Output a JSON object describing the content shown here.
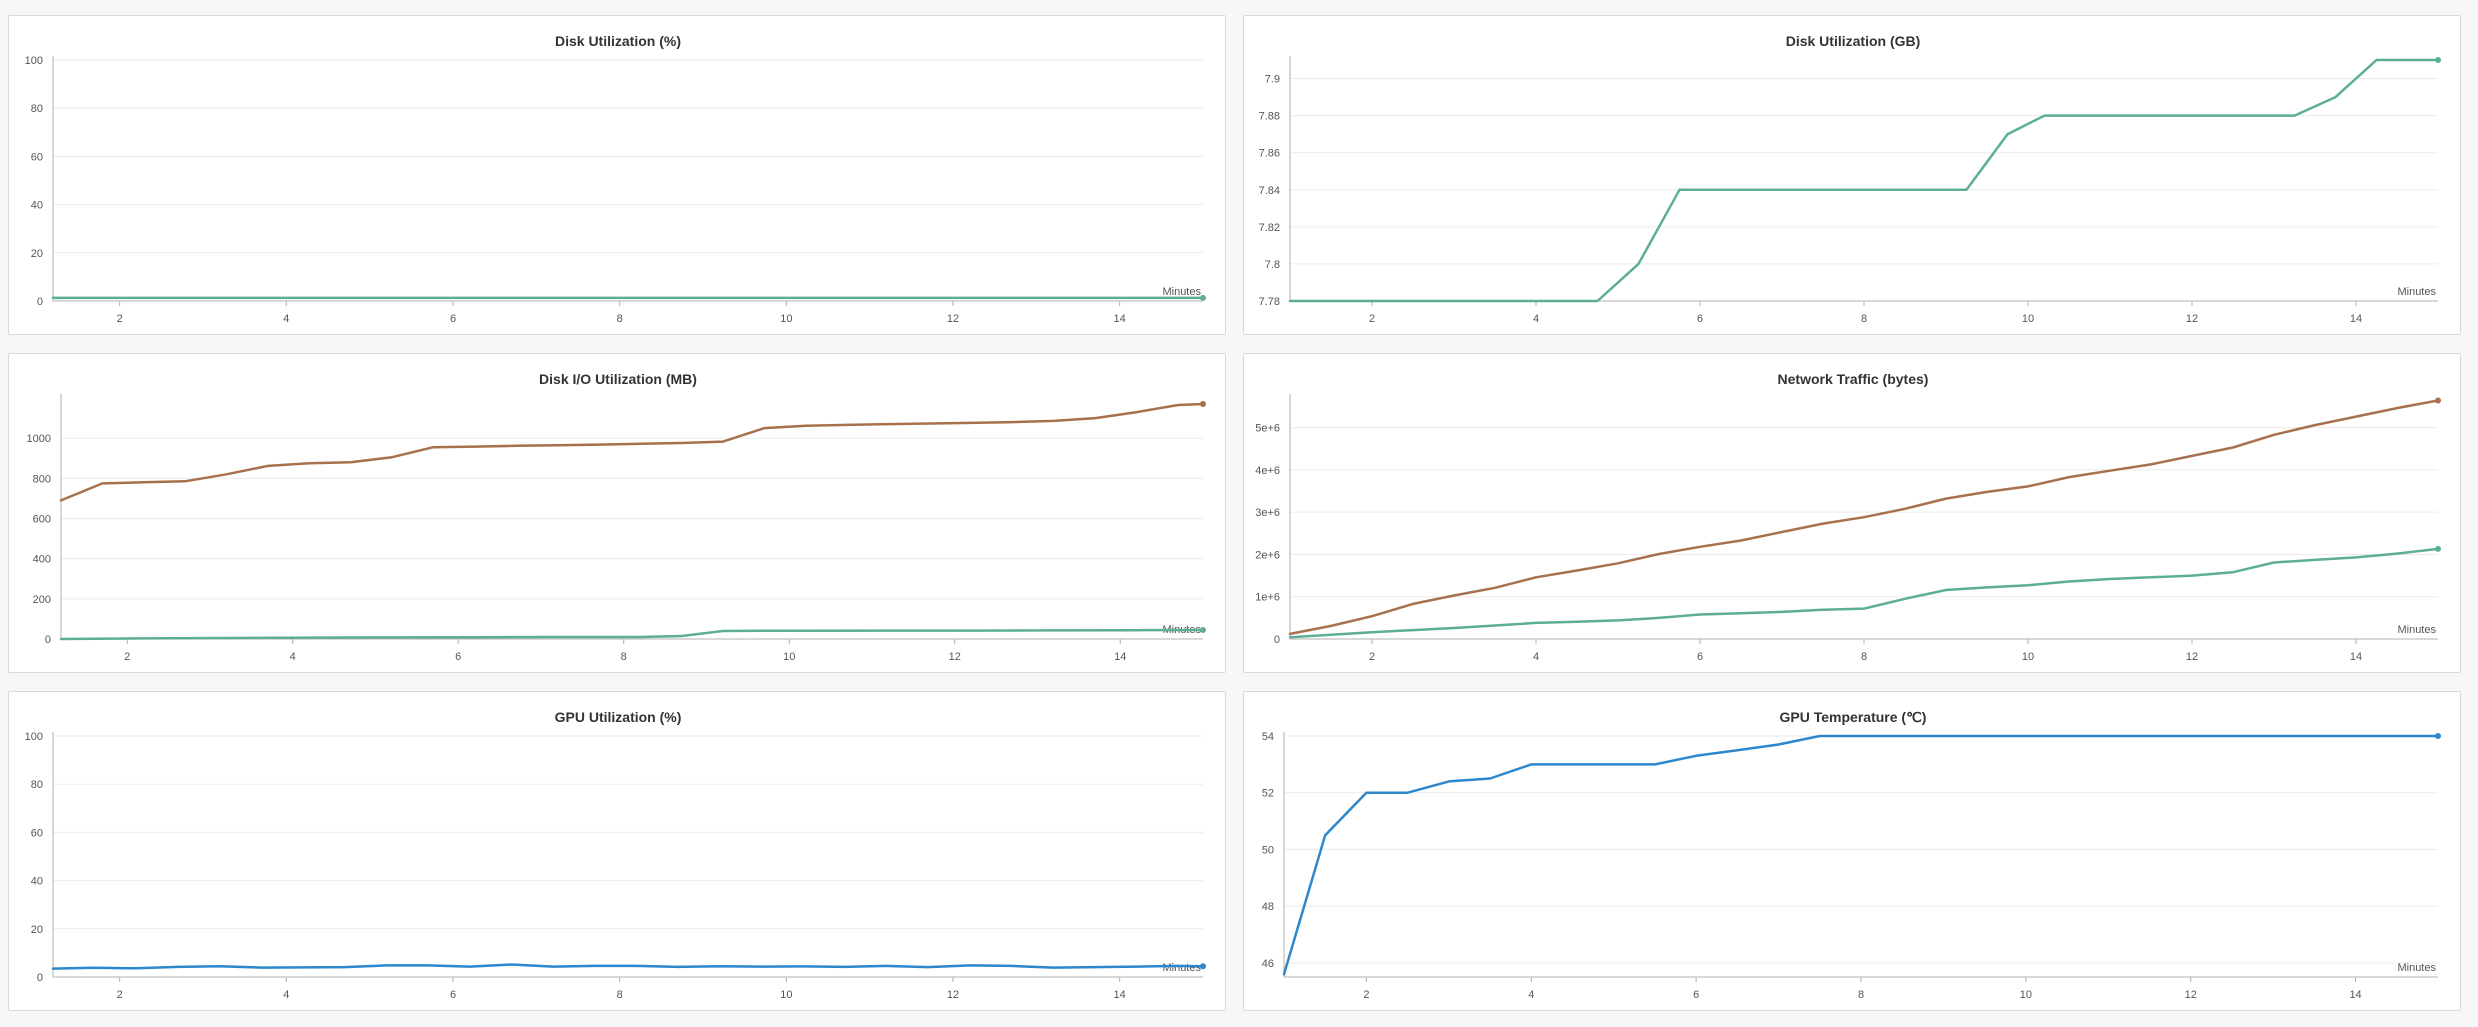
{
  "colors": {
    "teal": "#5cae98",
    "brown": "#a8714d",
    "blue": "#2d87cd",
    "grid": "#ebebeb",
    "axis": "#b0b0b0"
  },
  "chart_data": [
    {
      "id": "disk-util-pct",
      "type": "line",
      "title": "Disk Utilization (%)",
      "xlabel": "Minutes",
      "ylabel": "",
      "xlim": [
        1.2,
        15
      ],
      "ylim": [
        0,
        100
      ],
      "xticks": [
        "2",
        "4",
        "6",
        "8",
        "10",
        "12",
        "14"
      ],
      "xtick_values": [
        2,
        4,
        6,
        8,
        10,
        12,
        14
      ],
      "yticks": [
        "0",
        "20",
        "40",
        "60",
        "80",
        "100"
      ],
      "ytick_values": [
        0,
        20,
        40,
        60,
        80,
        100
      ],
      "grid": true,
      "series": [
        {
          "color": "#5cae98",
          "x": [
            1.2,
            15
          ],
          "y": [
            1.3,
            1.3
          ]
        }
      ]
    },
    {
      "id": "disk-util-gb",
      "type": "line",
      "title": "Disk Utilization (GB)",
      "xlabel": "Minutes",
      "ylabel": "",
      "xlim": [
        1.0,
        15
      ],
      "ylim": [
        7.78,
        7.91
      ],
      "xticks": [
        "2",
        "4",
        "6",
        "8",
        "10",
        "12",
        "14"
      ],
      "xtick_values": [
        2,
        4,
        6,
        8,
        10,
        12,
        14
      ],
      "yticks": [
        "7.78",
        "7.8",
        "7.82",
        "7.84",
        "7.86",
        "7.88",
        "7.9"
      ],
      "ytick_values": [
        7.78,
        7.8,
        7.82,
        7.84,
        7.86,
        7.88,
        7.9
      ],
      "grid": true,
      "series": [
        {
          "color": "#5cae98",
          "x": [
            1.0,
            4.75,
            5.25,
            5.75,
            9.25,
            9.75,
            10.2,
            13.25,
            13.75,
            14.25,
            15
          ],
          "y": [
            7.78,
            7.78,
            7.8,
            7.84,
            7.84,
            7.87,
            7.88,
            7.88,
            7.89,
            7.91,
            7.91
          ]
        }
      ]
    },
    {
      "id": "disk-io-mb",
      "type": "line",
      "title": "Disk I/O Utilization (MB)",
      "xlabel": "Minutes",
      "ylabel": "",
      "xlim": [
        1.2,
        15
      ],
      "ylim": [
        0,
        1200
      ],
      "xticks": [
        "2",
        "4",
        "6",
        "8",
        "10",
        "12",
        "14"
      ],
      "xtick_values": [
        2,
        4,
        6,
        8,
        10,
        12,
        14
      ],
      "yticks": [
        "0",
        "200",
        "400",
        "600",
        "800",
        "1000"
      ],
      "ytick_values": [
        0,
        200,
        400,
        600,
        800,
        1000
      ],
      "grid": true,
      "series": [
        {
          "color": "#a8714d",
          "x": [
            1.2,
            1.7,
            2.2,
            2.7,
            3.2,
            3.7,
            4.2,
            4.7,
            5.2,
            5.7,
            6.2,
            6.7,
            7.2,
            7.7,
            8.2,
            8.7,
            9.2,
            9.7,
            10.2,
            10.7,
            11.2,
            11.7,
            12.2,
            12.7,
            13.2,
            13.7,
            14.2,
            14.7,
            15
          ],
          "y": [
            690,
            775,
            780,
            785,
            820,
            862,
            875,
            880,
            905,
            955,
            958,
            962,
            965,
            968,
            972,
            976,
            983,
            1050,
            1062,
            1066,
            1070,
            1073,
            1076,
            1080,
            1086,
            1100,
            1130,
            1165,
            1170
          ]
        },
        {
          "color": "#5cae98",
          "x": [
            1.2,
            2.2,
            3.2,
            4.2,
            5.2,
            6.2,
            7.2,
            8.2,
            8.7,
            9.2,
            9.7,
            10.2,
            11.2,
            12.2,
            13.2,
            14.2,
            15
          ],
          "y": [
            0,
            3,
            5,
            7,
            8,
            9,
            10,
            10,
            15,
            40,
            41,
            41,
            42,
            42,
            43,
            44,
            45
          ]
        }
      ]
    },
    {
      "id": "network-traffic",
      "type": "line",
      "title": "Network Traffic (bytes)",
      "xlabel": "Minutes",
      "ylabel": "",
      "xlim": [
        1.0,
        15
      ],
      "ylim": [
        0,
        5700000
      ],
      "xticks": [
        "2",
        "4",
        "6",
        "8",
        "10",
        "12",
        "14"
      ],
      "xtick_values": [
        2,
        4,
        6,
        8,
        10,
        12,
        14
      ],
      "yticks": [
        "0",
        "1e+6",
        "2e+6",
        "3e+6",
        "4e+6",
        "5e+6"
      ],
      "ytick_values": [
        0,
        1000000,
        2000000,
        3000000,
        4000000,
        5000000
      ],
      "grid": true,
      "series": [
        {
          "color": "#a8714d",
          "x": [
            1.0,
            1.5,
            2.0,
            2.5,
            3.0,
            3.5,
            4.0,
            4.5,
            5.0,
            5.5,
            6.0,
            6.5,
            7.0,
            7.5,
            8.0,
            8.5,
            9.0,
            9.5,
            10.0,
            10.5,
            11.0,
            11.5,
            12.0,
            12.5,
            13.0,
            13.5,
            14.0,
            14.5,
            15
          ],
          "y": [
            120000,
            310000,
            540000,
            830000,
            1030000,
            1210000,
            1460000,
            1620000,
            1790000,
            2010000,
            2180000,
            2330000,
            2530000,
            2730000,
            2880000,
            3080000,
            3320000,
            3480000,
            3610000,
            3830000,
            3980000,
            4130000,
            4330000,
            4530000,
            4830000,
            5060000,
            5260000,
            5460000,
            5640000
          ]
        },
        {
          "color": "#5cae98",
          "x": [
            1.0,
            1.5,
            2.0,
            2.5,
            3.0,
            3.5,
            4.0,
            4.5,
            5.0,
            5.5,
            6.0,
            6.5,
            7.0,
            7.5,
            8.0,
            8.5,
            9.0,
            9.5,
            10.0,
            10.5,
            11.0,
            11.5,
            12.0,
            12.5,
            13.0,
            13.5,
            14.0,
            14.5,
            15
          ],
          "y": [
            40000,
            100000,
            160000,
            210000,
            260000,
            320000,
            380000,
            410000,
            440000,
            500000,
            580000,
            610000,
            640000,
            690000,
            720000,
            950000,
            1160000,
            1220000,
            1270000,
            1360000,
            1420000,
            1460000,
            1500000,
            1580000,
            1810000,
            1870000,
            1930000,
            2020000,
            2130000
          ]
        }
      ]
    },
    {
      "id": "gpu-util-pct",
      "type": "line",
      "title": "GPU Utilization (%)",
      "xlabel": "Minutes",
      "ylabel": "",
      "xlim": [
        1.2,
        15
      ],
      "ylim": [
        0,
        100
      ],
      "xticks": [
        "2",
        "4",
        "6",
        "8",
        "10",
        "12",
        "14"
      ],
      "xtick_values": [
        2,
        4,
        6,
        8,
        10,
        12,
        14
      ],
      "yticks": [
        "0",
        "20",
        "40",
        "60",
        "80",
        "100"
      ],
      "ytick_values": [
        0,
        20,
        40,
        60,
        80,
        100
      ],
      "grid": true,
      "series": [
        {
          "color": "#2d87cd",
          "x": [
            1.2,
            1.7,
            2.2,
            2.7,
            3.2,
            3.7,
            4.2,
            4.7,
            5.2,
            5.7,
            6.2,
            6.7,
            7.2,
            7.7,
            8.2,
            8.7,
            9.2,
            9.7,
            10.2,
            10.7,
            11.2,
            11.7,
            12.2,
            12.7,
            13.2,
            13.7,
            14.2,
            14.7,
            15
          ],
          "y": [
            3.5,
            3.8,
            3.6,
            4.2,
            4.5,
            3.9,
            4.0,
            4.1,
            4.8,
            4.8,
            4.3,
            5.2,
            4.3,
            4.6,
            4.6,
            4.2,
            4.5,
            4.3,
            4.4,
            4.2,
            4.6,
            4.1,
            4.8,
            4.6,
            3.9,
            4.1,
            4.3,
            4.6,
            4.5
          ]
        }
      ]
    },
    {
      "id": "gpu-temp",
      "type": "line",
      "title": "GPU Temperature (℃)",
      "xlabel": "Minutes",
      "ylabel": "",
      "xlim": [
        1.0,
        15
      ],
      "ylim": [
        45.5,
        54
      ],
      "xticks": [
        "2",
        "4",
        "6",
        "8",
        "10",
        "12",
        "14"
      ],
      "xtick_values": [
        2,
        4,
        6,
        8,
        10,
        12,
        14
      ],
      "yticks": [
        "46",
        "48",
        "50",
        "52",
        "54"
      ],
      "ytick_values": [
        46,
        48,
        50,
        52,
        54
      ],
      "grid": true,
      "series": [
        {
          "color": "#2d87cd",
          "x": [
            1.0,
            1.5,
            2.0,
            2.5,
            3.0,
            3.5,
            4.0,
            4.5,
            5.0,
            5.5,
            6.0,
            6.5,
            7.0,
            7.5,
            8.0,
            9.0,
            10.0,
            11.0,
            12.0,
            13.0,
            14.0,
            15
          ],
          "y": [
            45.6,
            50.5,
            52.0,
            52.0,
            52.4,
            52.5,
            53.0,
            53.0,
            53.0,
            53.0,
            53.3,
            53.5,
            53.7,
            54.0,
            54.0,
            54.0,
            54.0,
            54.0,
            54.0,
            54.0,
            54.0,
            54.0
          ]
        }
      ]
    }
  ]
}
